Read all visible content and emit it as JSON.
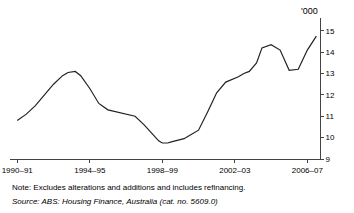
{
  "chart_data": {
    "type": "line",
    "x": [
      1990.5,
      1991.0,
      1991.5,
      1992.0,
      1992.5,
      1993.0,
      1993.3,
      1993.7,
      1994.0,
      1994.5,
      1995.0,
      1995.5,
      1996.0,
      1996.5,
      1997.0,
      1997.5,
      1998.0,
      1998.3,
      1998.5,
      1998.8,
      1999.0,
      1999.3,
      1999.7,
      2000.0,
      2000.5,
      2001.0,
      2001.5,
      2002.0,
      2002.3,
      2002.7,
      2003.0,
      2003.3,
      2003.7,
      2004.0,
      2004.5,
      2005.0,
      2005.5,
      2006.0,
      2006.5,
      2007.0
    ],
    "values": [
      10.8,
      11.1,
      11.5,
      12.0,
      12.5,
      12.9,
      13.05,
      13.1,
      12.9,
      12.3,
      11.6,
      11.3,
      11.2,
      11.1,
      11.0,
      10.6,
      10.1,
      9.85,
      9.75,
      9.75,
      9.8,
      9.85,
      9.95,
      10.1,
      10.35,
      11.2,
      12.1,
      12.6,
      12.7,
      12.85,
      13.0,
      13.1,
      13.5,
      14.2,
      14.35,
      14.1,
      13.15,
      13.2,
      14.1,
      14.75
    ],
    "color": "#222222",
    "xlim": [
      1990.1,
      2007.2
    ],
    "xticks": [
      {
        "value": 1990.5,
        "label": "1990–91"
      },
      {
        "value": 1994.5,
        "label": "1994–95"
      },
      {
        "value": 1998.5,
        "label": "1998–99"
      },
      {
        "value": 2002.5,
        "label": "2002–03"
      },
      {
        "value": 2006.5,
        "label": "2006–07"
      }
    ],
    "ylim": [
      9,
      15.6
    ],
    "yticks": [
      9,
      10,
      11,
      12,
      13,
      14,
      15
    ],
    "ylabel": "'000",
    "annotations": [
      "Note: Excludes alterations and additions and includes refinancing.",
      "Source: ABS: Housing Finance, Australia (cat. no. 5609.0)"
    ],
    "grid": false
  }
}
